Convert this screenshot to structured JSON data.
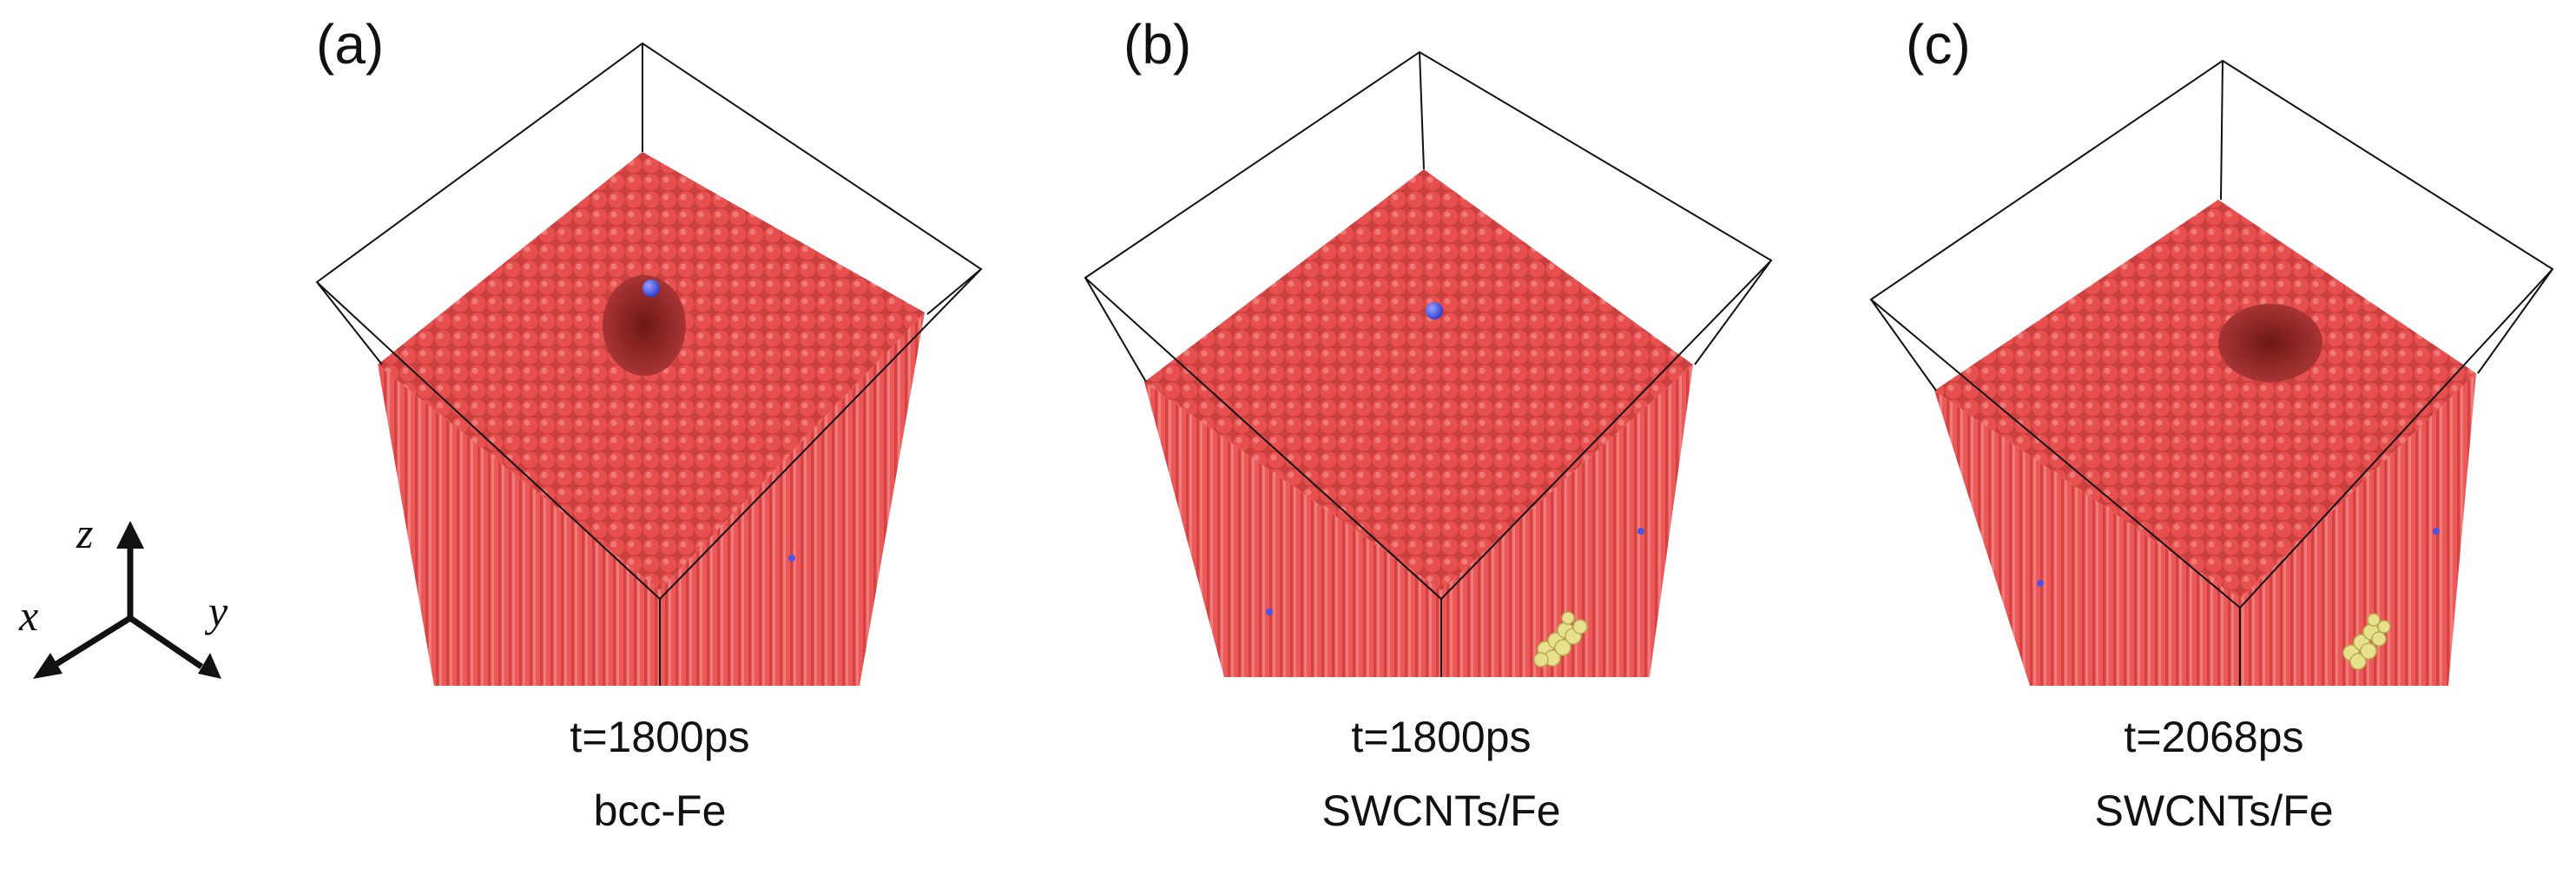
{
  "panels": [
    {
      "label": "(a)",
      "time": "t=1800ps",
      "material": "bcc-Fe",
      "has_cavity": true,
      "has_cnt": false
    },
    {
      "label": "(b)",
      "time": "t=1800ps",
      "material": "SWCNTs/Fe",
      "has_cavity": false,
      "has_cnt": true
    },
    {
      "label": "(c)",
      "time": "t=2068ps",
      "material": "SWCNTs/Fe",
      "has_cavity": true,
      "has_cnt": true
    }
  ],
  "axes": {
    "z": "z",
    "x": "x",
    "y": "y"
  },
  "colors": {
    "atom_fe": "#e8504f",
    "atom_shadow": "#b8302f",
    "atom_highlight": "#f5908e",
    "pka": "#4a55e0",
    "cnt": "#e7e18d",
    "box": "#111111"
  }
}
